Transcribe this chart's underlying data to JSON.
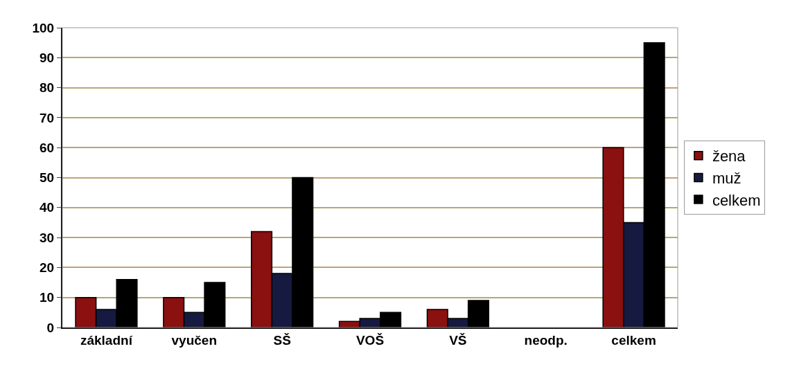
{
  "chart_data": {
    "type": "bar",
    "categories": [
      "základní",
      "vyučen",
      "SŠ",
      "VOŠ",
      "VŠ",
      "neodp.",
      "celkem"
    ],
    "series": [
      {
        "name": "žena",
        "color": "#8b1010",
        "values": [
          10,
          10,
          32,
          2,
          6,
          0,
          60
        ]
      },
      {
        "name": "muž",
        "color": "#161a40",
        "values": [
          6,
          5,
          18,
          3,
          3,
          0,
          35
        ]
      },
      {
        "name": "celkem",
        "color": "#000000",
        "values": [
          16,
          15,
          50,
          5,
          9,
          0,
          95
        ]
      }
    ],
    "ylim": [
      0,
      100
    ],
    "yticks": [
      0,
      10,
      20,
      30,
      40,
      50,
      60,
      70,
      80,
      90,
      100
    ],
    "grid": "y",
    "legend": "right"
  }
}
